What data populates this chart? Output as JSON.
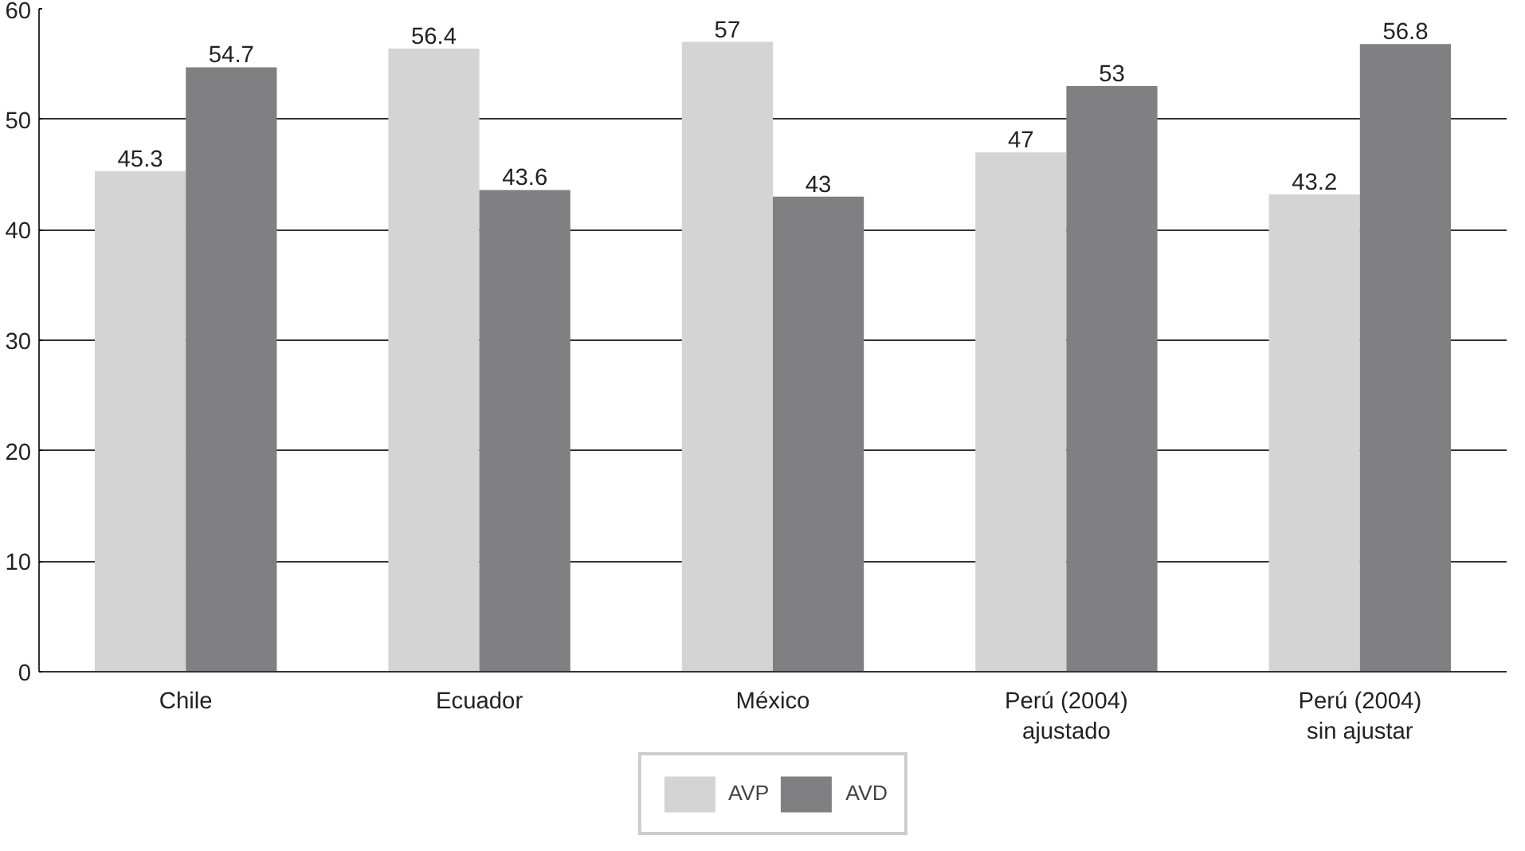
{
  "chart_data": {
    "type": "bar",
    "categories": [
      "Chile",
      "Ecuador",
      "México",
      "Perú (2004)\najustado",
      "Perú (2004)\nsin ajustar"
    ],
    "series": [
      {
        "name": "AVP",
        "color": "#d4d4d4",
        "values": [
          45.3,
          56.4,
          57,
          47,
          43.2
        ]
      },
      {
        "name": "AVD",
        "color": "#808083",
        "values": [
          54.7,
          43.6,
          43,
          53,
          56.8
        ]
      }
    ],
    "ylim": [
      0,
      60
    ],
    "yticks": [
      0,
      10,
      20,
      30,
      40,
      50,
      60
    ],
    "grid": "y",
    "data_labels": true,
    "legend": "bottom"
  }
}
